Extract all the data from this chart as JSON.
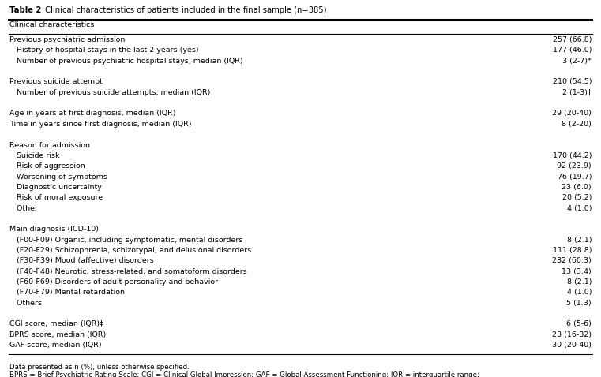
{
  "title_bold": "Table 2",
  "title_rest": " Clinical characteristics of patients included in the final sample (n=385)",
  "col_header": "Clinical characteristics",
  "rows": [
    {
      "label": "Previous psychiatric admission",
      "value": "257 (66.8)",
      "indent": 0
    },
    {
      "label": "   History of hospital stays in the last 2 years (yes)",
      "value": "177 (46.0)",
      "indent": 1
    },
    {
      "label": "   Number of previous psychiatric hospital stays, median (IQR)",
      "value": "3 (2-7)*",
      "indent": 1
    },
    {
      "label": "",
      "value": "",
      "indent": 0
    },
    {
      "label": "Previous suicide attempt",
      "value": "210 (54.5)",
      "indent": 0
    },
    {
      "label": "   Number of previous suicide attempts, median (IQR)",
      "value": "2 (1-3)†",
      "indent": 1
    },
    {
      "label": "",
      "value": "",
      "indent": 0
    },
    {
      "label": "Age in years at first diagnosis, median (IQR)",
      "value": "29 (20-40)",
      "indent": 0
    },
    {
      "label": "Time in years since first diagnosis, median (IQR)",
      "value": "8 (2-20)",
      "indent": 0
    },
    {
      "label": "",
      "value": "",
      "indent": 0
    },
    {
      "label": "Reason for admission",
      "value": "",
      "indent": 0
    },
    {
      "label": "   Suicide risk",
      "value": "170 (44.2)",
      "indent": 1
    },
    {
      "label": "   Risk of aggression",
      "value": "92 (23.9)",
      "indent": 1
    },
    {
      "label": "   Worsening of symptoms",
      "value": "76 (19.7)",
      "indent": 1
    },
    {
      "label": "   Diagnostic uncertainty",
      "value": "23 (6.0)",
      "indent": 1
    },
    {
      "label": "   Risk of moral exposure",
      "value": "20 (5.2)",
      "indent": 1
    },
    {
      "label": "   Other",
      "value": "4 (1.0)",
      "indent": 1
    },
    {
      "label": "",
      "value": "",
      "indent": 0
    },
    {
      "label": "Main diagnosis (ICD-10)",
      "value": "",
      "indent": 0
    },
    {
      "label": "   (F00-F09) Organic, including symptomatic, mental disorders",
      "value": "8 (2.1)",
      "indent": 1
    },
    {
      "label": "   (F20-F29) Schizophrenia, schizotypal, and delusional disorders",
      "value": "111 (28.8)",
      "indent": 1
    },
    {
      "label": "   (F30-F39) Mood (affective) disorders",
      "value": "232 (60.3)",
      "indent": 1
    },
    {
      "label": "   (F40-F48) Neurotic, stress-related, and somatoform disorders",
      "value": "13 (3.4)",
      "indent": 1
    },
    {
      "label": "   (F60-F69) Disorders of adult personality and behavior",
      "value": "8 (2.1)",
      "indent": 1
    },
    {
      "label": "   (F70-F79) Mental retardation",
      "value": "4 (1.0)",
      "indent": 1
    },
    {
      "label": "   Others",
      "value": "5 (1.3)",
      "indent": 1
    },
    {
      "label": "",
      "value": "",
      "indent": 0
    },
    {
      "label": "CGI score, median (IQR)‡",
      "value": "6 (5-6)",
      "indent": 0
    },
    {
      "label": "BPRS score, median (IQR)",
      "value": "23 (16-32)",
      "indent": 0
    },
    {
      "label": "GAF score, median (IQR)",
      "value": "30 (20-40)",
      "indent": 0
    }
  ],
  "footnote1": "Data presented as n (%), unless otherwise specified.",
  "footnote2": "BPRS = Brief Psychiatric Rating Scale; CGI = Clinical Global Impression; GAF = Global Assessment Functioning; IQR = interquartile range;",
  "bg_color": "#ffffff",
  "text_color": "#000000",
  "line_color": "#000000",
  "font_size": 6.8,
  "title_font_size": 7.2,
  "footnote_font_size": 6.2
}
